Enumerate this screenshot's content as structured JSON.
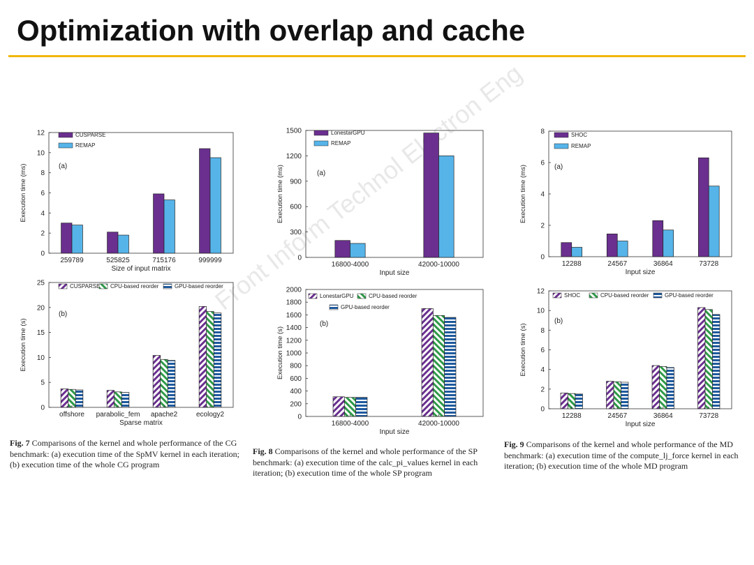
{
  "slide": {
    "title": "Optimization with overlap and cache",
    "accent_color": "#f2b705",
    "watermark": "Front Inform Technol Electron Eng"
  },
  "captions": [
    {
      "fig": "Fig. 7",
      "text": "Comparisons of the kernel and whole performance of the CG benchmark: (a) execution time of the SpMV kernel in each iteration; (b) execution time of the whole CG program"
    },
    {
      "fig": "Fig. 8",
      "text": "Comparisons of the kernel and whole performance of the SP benchmark: (a) execution time of the calc_pi_values kernel in each iteration; (b) execution time of the whole SP program"
    },
    {
      "fig": "Fig. 9",
      "text": "Comparisons of the kernel and whole performance of the MD benchmark: (a) execution time of the compute_lj_force kernel in each iteration; (b) execution time of the whole MD program"
    }
  ],
  "colors": {
    "purple": "#6a2f8f",
    "blue": "#56b4e9",
    "green": "#2e9a48",
    "navy": "#1e5a9e"
  },
  "chart_data": [
    {
      "id": "fig7a",
      "type": "bar",
      "panel_label": "(a)",
      "xlabel": "Size of input matrix",
      "ylabel": "Execution time (ms)",
      "ylim": [
        0,
        12
      ],
      "yticks": [
        0,
        2,
        4,
        6,
        8,
        10,
        12
      ],
      "categories": [
        "259789",
        "525825",
        "715176",
        "999999"
      ],
      "series": [
        {
          "name": "CUSPARSE",
          "pattern": "purple",
          "values": [
            3.0,
            2.1,
            5.9,
            10.4
          ]
        },
        {
          "name": "REMAP",
          "pattern": "blue",
          "values": [
            2.8,
            1.8,
            5.3,
            9.5
          ]
        }
      ]
    },
    {
      "id": "fig8a",
      "type": "bar",
      "panel_label": "(a)",
      "xlabel": "Input size",
      "ylabel": "Execution time (ms)",
      "ylim": [
        0,
        1500
      ],
      "yticks": [
        0,
        300,
        600,
        900,
        1200,
        1500
      ],
      "categories": [
        "16800-4000",
        "42000-10000"
      ],
      "series": [
        {
          "name": "LonestarGPU",
          "pattern": "purple",
          "values": [
            200,
            1470
          ]
        },
        {
          "name": "REMAP",
          "pattern": "blue",
          "values": [
            165,
            1200
          ]
        }
      ]
    },
    {
      "id": "fig9a",
      "type": "bar",
      "panel_label": "(a)",
      "xlabel": "Input size",
      "ylabel": "Execution time (ms)",
      "ylim": [
        0,
        8
      ],
      "yticks": [
        0,
        2,
        4,
        6,
        8
      ],
      "categories": [
        "12288",
        "24567",
        "36864",
        "73728"
      ],
      "series": [
        {
          "name": "SHOC",
          "pattern": "purple",
          "values": [
            0.9,
            1.45,
            2.3,
            6.3
          ]
        },
        {
          "name": "REMAP",
          "pattern": "blue",
          "values": [
            0.6,
            1.0,
            1.7,
            4.5
          ]
        }
      ]
    },
    {
      "id": "fig7b",
      "type": "bar",
      "panel_label": "(b)",
      "xlabel": "Sparse matrix",
      "ylabel": "Execution time (s)",
      "ylim": [
        0,
        25
      ],
      "yticks": [
        0,
        5,
        10,
        15,
        20,
        25
      ],
      "categories": [
        "offshore",
        "parabolic_fem",
        "apache2",
        "ecology2"
      ],
      "series": [
        {
          "name": "CUSPARSE",
          "pattern": "purple-hatch",
          "values": [
            3.7,
            3.4,
            10.4,
            20.2
          ]
        },
        {
          "name": "CPU-based reorder",
          "pattern": "green-hatch",
          "values": [
            3.6,
            3.1,
            9.6,
            19.2
          ]
        },
        {
          "name": "GPU-based reorder",
          "pattern": "navy-stripe",
          "values": [
            3.5,
            3.0,
            9.4,
            18.9
          ]
        }
      ]
    },
    {
      "id": "fig8b",
      "type": "bar",
      "panel_label": "(b)",
      "xlabel": "Input size",
      "ylabel": "Execution time (s)",
      "ylim": [
        0,
        2000
      ],
      "yticks": [
        0,
        200,
        400,
        600,
        800,
        1000,
        1200,
        1400,
        1600,
        1800,
        2000
      ],
      "categories": [
        "16800-4000",
        "42000-10000"
      ],
      "series": [
        {
          "name": "LonestarGPU",
          "pattern": "purple-hatch",
          "values": [
            310,
            1700
          ]
        },
        {
          "name": "CPU-based reorder",
          "pattern": "green-hatch",
          "values": [
            300,
            1590
          ]
        },
        {
          "name": "GPU-based reorder",
          "pattern": "navy-stripe",
          "values": [
            300,
            1560
          ]
        }
      ]
    },
    {
      "id": "fig9b",
      "type": "bar",
      "panel_label": "(b)",
      "xlabel": "Input size",
      "ylabel": "Execution time (s)",
      "ylim": [
        0,
        12
      ],
      "yticks": [
        0,
        2,
        4,
        6,
        8,
        10,
        12
      ],
      "categories": [
        "12288",
        "24567",
        "36864",
        "73728"
      ],
      "series": [
        {
          "name": "SHOC",
          "pattern": "purple-hatch",
          "values": [
            1.6,
            2.8,
            4.4,
            10.3
          ]
        },
        {
          "name": "CPU-based reorder",
          "pattern": "green-hatch",
          "values": [
            1.55,
            2.75,
            4.3,
            10.1
          ]
        },
        {
          "name": "GPU-based reorder",
          "pattern": "navy-stripe",
          "values": [
            1.5,
            2.7,
            4.2,
            9.6
          ]
        }
      ]
    }
  ]
}
